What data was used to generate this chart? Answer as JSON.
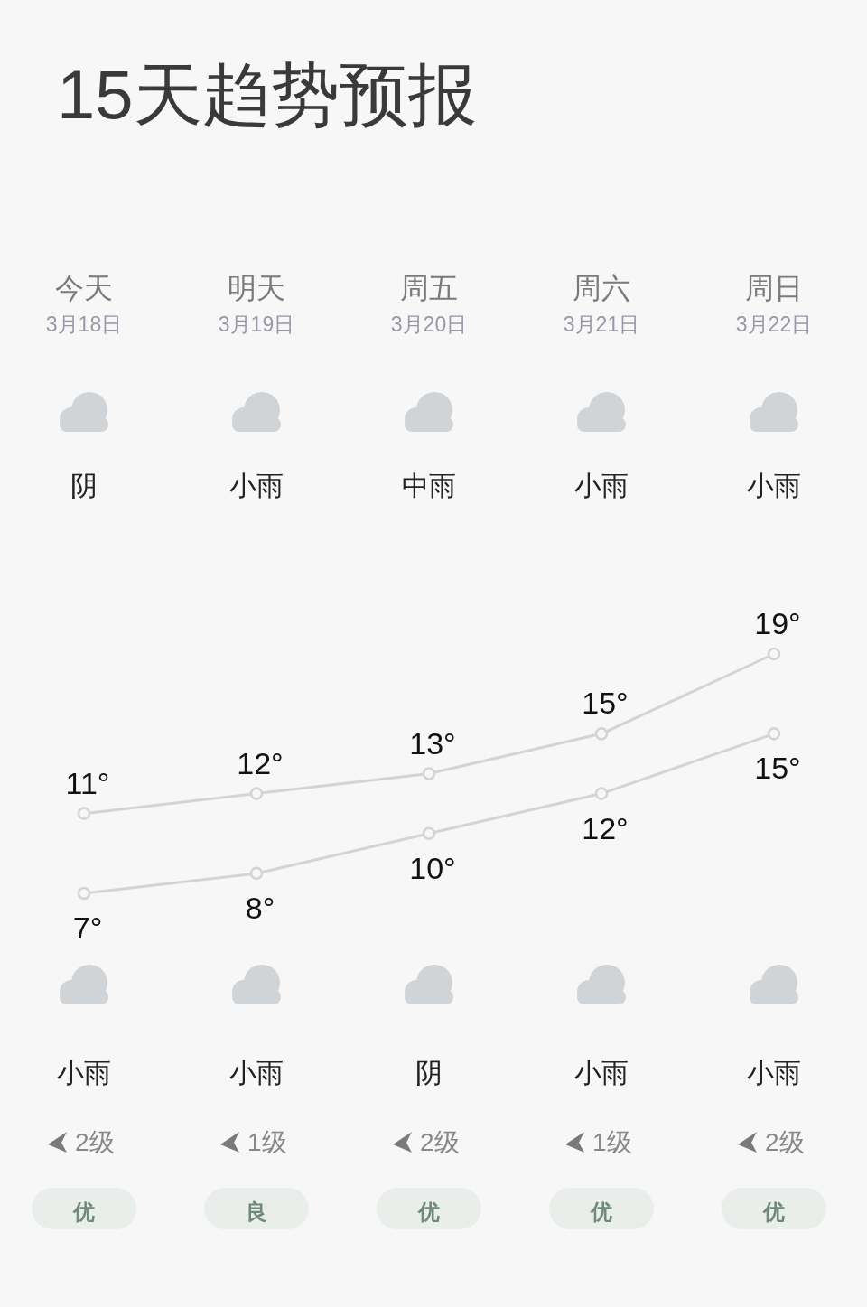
{
  "chart_data": {
    "type": "line",
    "title": "15天趋势预报",
    "categories": [
      "今天\n3月18日",
      "明天\n3月19日",
      "周五\n3月20日",
      "周六\n3月21日",
      "周日\n3月22日"
    ],
    "series": [
      {
        "color": "#d4d4d4",
        "values": [
          11,
          12,
          13,
          15,
          19
        ],
        "value_labels": [
          "11°",
          "12°",
          "13°",
          "15°",
          "19°"
        ]
      },
      {
        "color": "#d4d4d4",
        "values": [
          7,
          8,
          10,
          12,
          15
        ],
        "value_labels": [
          "7°",
          "8°",
          "10°",
          "12°",
          "15°"
        ]
      }
    ],
    "marker": "circle",
    "line_style": "solid",
    "tick_labels": "x",
    "annotations": [
      "阴",
      "小雨",
      "中雨",
      "小雨",
      "小雨",
      "小雨",
      "小雨",
      "阴",
      "小雨",
      "小雨",
      "2级",
      "1级",
      "2级",
      "1级",
      "2级",
      "优",
      "良",
      "优",
      "优",
      "优"
    ]
  }
}
